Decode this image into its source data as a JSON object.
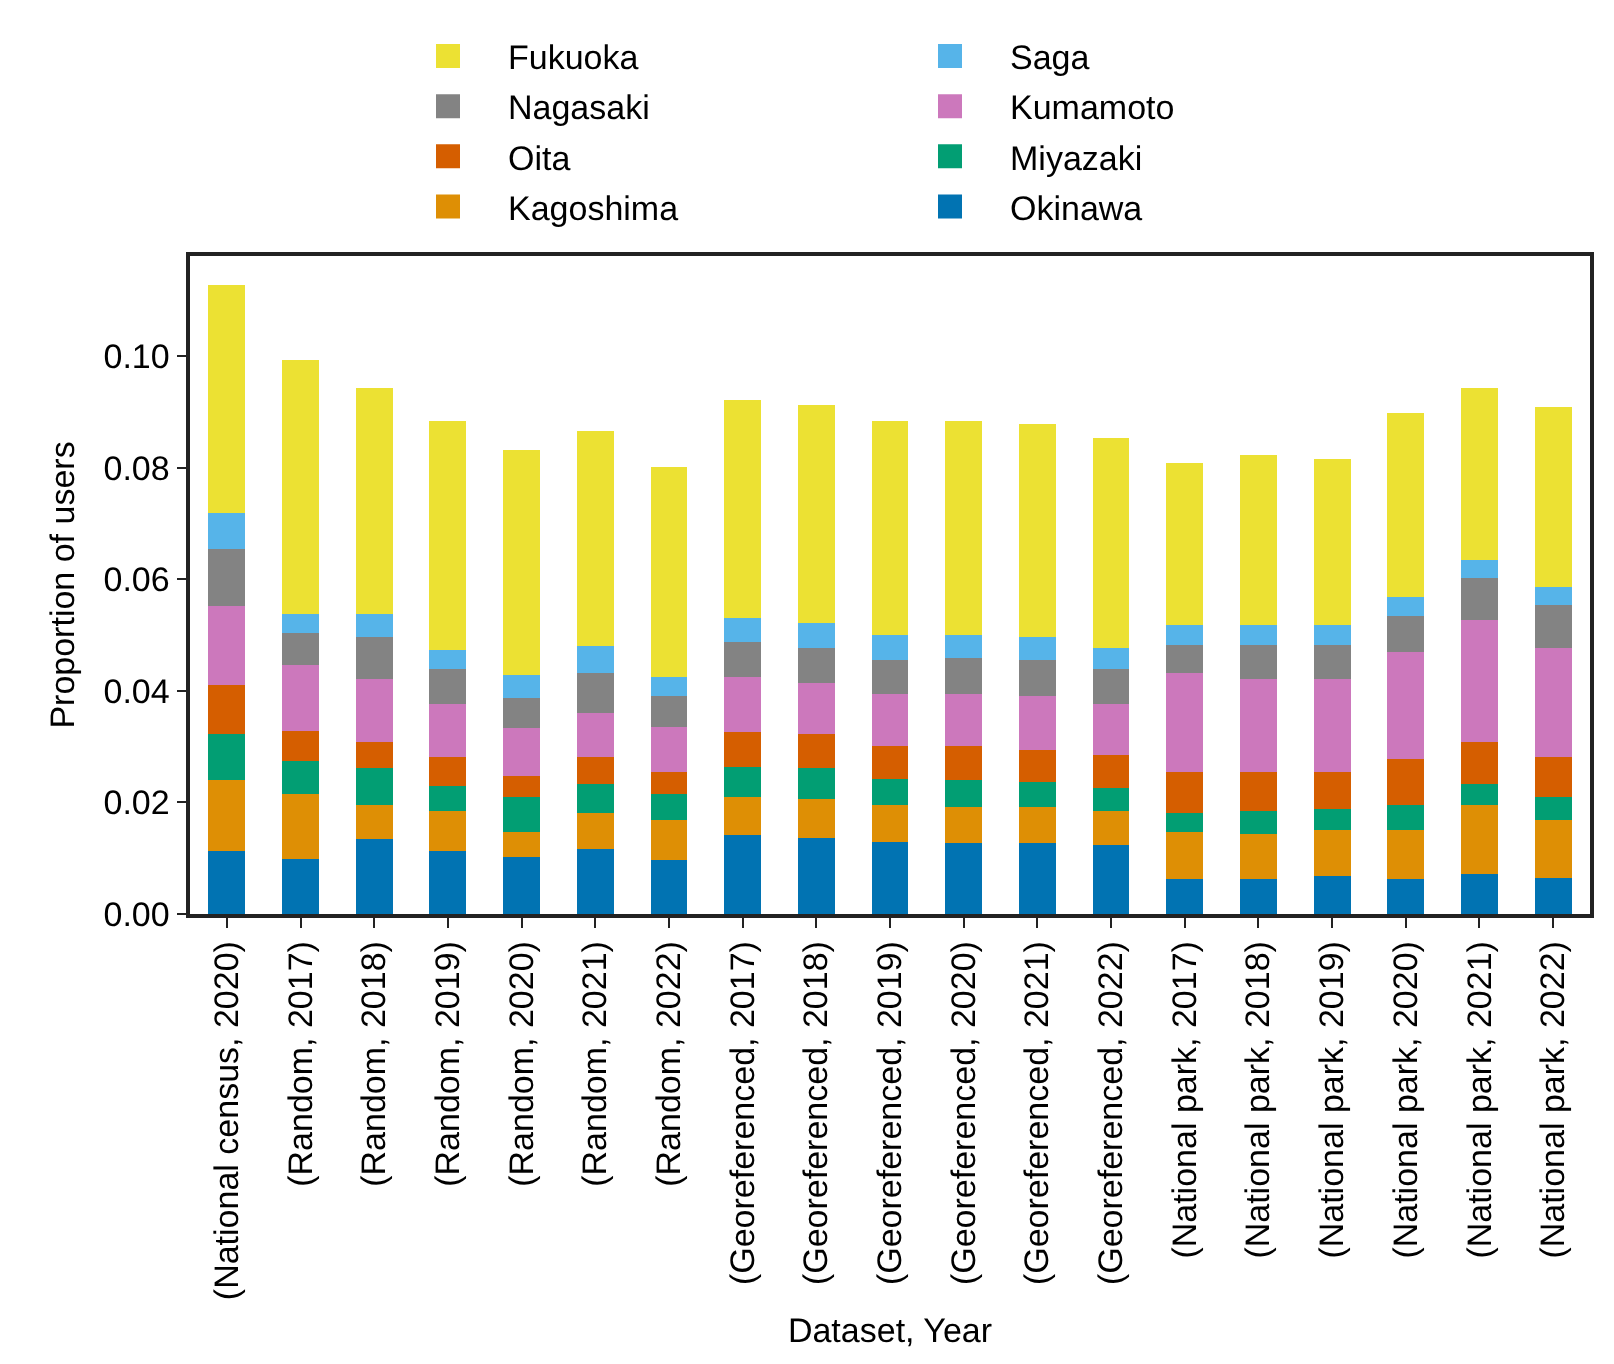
{
  "chart_data": {
    "type": "bar",
    "stacked": true,
    "xlabel": "Dataset, Year",
    "ylabel": "Proportion of users",
    "categories": [
      "(National census, 2020)",
      "(Random, 2017)",
      "(Random, 2018)",
      "(Random, 2019)",
      "(Random, 2020)",
      "(Random, 2021)",
      "(Random, 2022)",
      "(Georeferenced, 2017)",
      "(Georeferenced, 2018)",
      "(Georeferenced, 2019)",
      "(Georeferenced, 2020)",
      "(Georeferenced, 2021)",
      "(Georeferenced, 2022)",
      "(National park, 2017)",
      "(National park, 2018)",
      "(National park, 2019)",
      "(National park, 2020)",
      "(National park, 2021)",
      "(National park, 2022)"
    ],
    "series": [
      {
        "name": "Okinawa",
        "color": "#0173b2",
        "values": [
          0.0113,
          0.0099,
          0.0134,
          0.0113,
          0.0103,
          0.0117,
          0.0096,
          0.0141,
          0.0137,
          0.013,
          0.0127,
          0.0127,
          0.0123,
          0.0062,
          0.0062,
          0.0069,
          0.0062,
          0.0072,
          0.0065
        ]
      },
      {
        "name": "Kagoshima",
        "color": "#de8f05",
        "values": [
          0.0127,
          0.0117,
          0.0061,
          0.0072,
          0.0044,
          0.0065,
          0.0072,
          0.0068,
          0.0069,
          0.0065,
          0.0065,
          0.0065,
          0.0062,
          0.0085,
          0.0082,
          0.0082,
          0.0089,
          0.0123,
          0.0103
        ]
      },
      {
        "name": "Miyazaki",
        "color": "#029e73",
        "values": [
          0.0082,
          0.0058,
          0.0066,
          0.0045,
          0.0062,
          0.0051,
          0.0048,
          0.0055,
          0.0055,
          0.0048,
          0.0048,
          0.0045,
          0.0041,
          0.0035,
          0.0041,
          0.0038,
          0.0044,
          0.0038,
          0.0041
        ]
      },
      {
        "name": "Oita",
        "color": "#d55e00",
        "values": [
          0.0089,
          0.0055,
          0.0048,
          0.0051,
          0.0038,
          0.0048,
          0.0038,
          0.0062,
          0.0061,
          0.0059,
          0.0062,
          0.0058,
          0.0059,
          0.0072,
          0.0069,
          0.0065,
          0.0083,
          0.0076,
          0.0072
        ]
      },
      {
        "name": "Kumamoto",
        "color": "#cc78bc",
        "values": [
          0.0142,
          0.0117,
          0.0113,
          0.0096,
          0.0086,
          0.0079,
          0.0082,
          0.0099,
          0.0093,
          0.0092,
          0.0092,
          0.0096,
          0.0092,
          0.0178,
          0.0168,
          0.0168,
          0.0192,
          0.0219,
          0.0196
        ]
      },
      {
        "name": "Nagasaki",
        "color": "#838383",
        "values": [
          0.0102,
          0.0058,
          0.0075,
          0.0062,
          0.0054,
          0.0072,
          0.0055,
          0.0062,
          0.0062,
          0.0062,
          0.0065,
          0.0065,
          0.0062,
          0.0051,
          0.0061,
          0.0061,
          0.0065,
          0.0075,
          0.0078
        ]
      },
      {
        "name": "Saga",
        "color": "#56b4e9",
        "values": [
          0.0065,
          0.0034,
          0.0041,
          0.0034,
          0.0042,
          0.0048,
          0.0034,
          0.0044,
          0.0044,
          0.0045,
          0.0042,
          0.0041,
          0.0038,
          0.0035,
          0.0035,
          0.0035,
          0.0034,
          0.0031,
          0.0031
        ]
      },
      {
        "name": "Fukuoka",
        "color": "#ece133",
        "values": [
          0.0408,
          0.0456,
          0.0405,
          0.0412,
          0.0404,
          0.0387,
          0.0377,
          0.0391,
          0.0391,
          0.0384,
          0.0384,
          0.0381,
          0.0377,
          0.0291,
          0.0305,
          0.0298,
          0.0329,
          0.0309,
          0.0323
        ]
      }
    ],
    "ylim": [
      0,
      0.118
    ],
    "yticks": [
      {
        "value": 0,
        "label": "0.00"
      },
      {
        "value": 0.02,
        "label": "0.02"
      },
      {
        "value": 0.04,
        "label": "0.04"
      },
      {
        "value": 0.06,
        "label": "0.06"
      },
      {
        "value": 0.08,
        "label": "0.08"
      },
      {
        "value": 0.1,
        "label": "0.10"
      }
    ],
    "legend": "top"
  }
}
